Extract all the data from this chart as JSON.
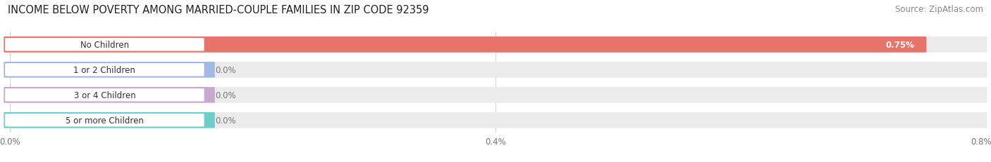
{
  "title": "INCOME BELOW POVERTY AMONG MARRIED-COUPLE FAMILIES IN ZIP CODE 92359",
  "source": "Source: ZipAtlas.com",
  "categories": [
    "No Children",
    "1 or 2 Children",
    "3 or 4 Children",
    "5 or more Children"
  ],
  "values": [
    0.75,
    0.0,
    0.0,
    0.0
  ],
  "bar_colors": [
    "#e8736b",
    "#a4b8e4",
    "#c8a8d0",
    "#70ccc8"
  ],
  "bar_bg_color": "#ebebeb",
  "xlim_max": 0.8,
  "xtick_values": [
    0.0,
    0.4,
    0.8
  ],
  "xtick_labels": [
    "0.0%",
    "0.4%",
    "0.8%"
  ],
  "value_label_color": "#777777",
  "title_fontsize": 10.5,
  "source_fontsize": 8.5,
  "tick_fontsize": 8.5,
  "cat_label_fontsize": 8.5,
  "val_label_fontsize": 8.5,
  "figsize": [
    14.06,
    2.32
  ],
  "dpi": 100
}
